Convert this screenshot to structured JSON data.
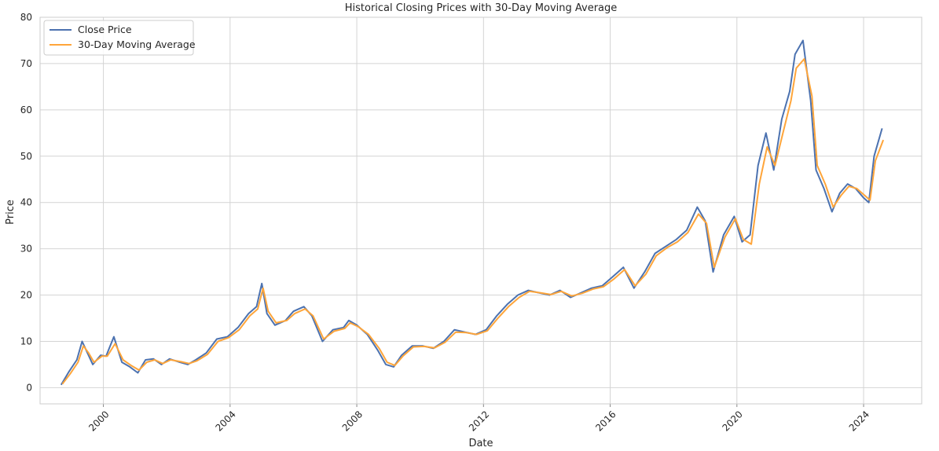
{
  "chart_data": {
    "type": "line",
    "title": "Historical Closing Prices with 30-Day Moving Average",
    "xlabel": "Date",
    "ylabel": "Price",
    "xlim": [
      "1998-01-01",
      "2025-11-01"
    ],
    "ylim": [
      -3.5,
      80
    ],
    "x_ticks": [
      "2000",
      "2004",
      "2008",
      "2012",
      "2016",
      "2020",
      "2024"
    ],
    "y_ticks": [
      0,
      10,
      20,
      30,
      40,
      50,
      60,
      70,
      80
    ],
    "grid": true,
    "legend": "top-left",
    "colors": {
      "close": "#4c72b0",
      "ma": "#ffa53a",
      "grid": "#d4d4d4",
      "axes": "#cccccc"
    },
    "series": [
      {
        "name": "Close Price",
        "key": "close",
        "x": [
          "1998-09-01",
          "1998-12-01",
          "1999-03-01",
          "1999-05-01",
          "1999-07-01",
          "1999-09-01",
          "1999-12-01",
          "2000-02-01",
          "2000-05-01",
          "2000-08-01",
          "2000-11-01",
          "2001-02-01",
          "2001-05-01",
          "2001-08-01",
          "2001-11-01",
          "2002-02-01",
          "2002-06-01",
          "2002-09-01",
          "2002-12-01",
          "2003-04-01",
          "2003-08-01",
          "2003-12-01",
          "2004-04-01",
          "2004-08-01",
          "2004-11-01",
          "2005-01-01",
          "2005-03-01",
          "2005-06-01",
          "2005-10-01",
          "2006-01-01",
          "2006-05-01",
          "2006-08-01",
          "2006-12-01",
          "2007-04-01",
          "2007-08-01",
          "2007-10-01",
          "2008-01-01",
          "2008-05-01",
          "2008-09-01",
          "2008-12-01",
          "2009-03-01",
          "2009-06-01",
          "2009-10-01",
          "2010-02-01",
          "2010-06-01",
          "2010-10-01",
          "2011-02-01",
          "2011-06-01",
          "2011-10-01",
          "2012-02-01",
          "2012-06-01",
          "2012-10-01",
          "2013-02-01",
          "2013-06-01",
          "2013-10-01",
          "2014-02-01",
          "2014-06-01",
          "2014-10-01",
          "2015-02-01",
          "2015-06-01",
          "2015-10-01",
          "2016-02-01",
          "2016-06-01",
          "2016-10-01",
          "2017-02-01",
          "2017-06-01",
          "2017-10-01",
          "2018-02-01",
          "2018-06-01",
          "2018-10-01",
          "2019-01-01",
          "2019-04-01",
          "2019-08-01",
          "2019-12-01",
          "2020-03-01",
          "2020-06-01",
          "2020-09-01",
          "2020-12-01",
          "2021-03-01",
          "2021-06-01",
          "2021-09-01",
          "2021-11-01",
          "2022-02-01",
          "2022-05-01",
          "2022-07-01",
          "2022-10-01",
          "2023-01-01",
          "2023-04-01",
          "2023-07-01",
          "2023-10-01",
          "2024-01-01",
          "2024-03-01",
          "2024-05-01",
          "2024-08-01"
        ],
        "values": [
          0.6,
          3.5,
          6.0,
          10.0,
          7.5,
          5.0,
          7.0,
          6.8,
          11.0,
          5.5,
          4.5,
          3.2,
          6.0,
          6.2,
          5.0,
          6.2,
          5.5,
          5.0,
          6.0,
          7.5,
          10.5,
          11.0,
          13.0,
          16.0,
          17.5,
          22.5,
          16.0,
          13.5,
          14.5,
          16.5,
          17.5,
          15.5,
          10.0,
          12.5,
          13.0,
          14.5,
          13.5,
          11.5,
          8.0,
          5.0,
          4.5,
          7.0,
          9.0,
          9.0,
          8.5,
          10.0,
          12.5,
          12.0,
          11.5,
          12.5,
          15.5,
          18.0,
          20.0,
          21.0,
          20.5,
          20.0,
          21.0,
          19.5,
          20.5,
          21.5,
          22.0,
          24.0,
          26.0,
          21.5,
          25.0,
          29.0,
          30.5,
          32.0,
          34.0,
          39.0,
          36.0,
          25.0,
          33.0,
          37.0,
          31.5,
          33.0,
          48.0,
          55.0,
          47.0,
          58.0,
          64.0,
          72.0,
          75.0,
          62.0,
          47.0,
          43.0,
          38.0,
          42.0,
          44.0,
          43.0,
          41.0,
          40.0,
          50.0,
          56.0
        ]
      },
      {
        "name": "30-Day Moving Average",
        "key": "ma",
        "x": [
          "1998-09-15",
          "1998-12-15",
          "1999-03-15",
          "1999-05-15",
          "1999-07-15",
          "1999-09-15",
          "1999-12-15",
          "2000-02-15",
          "2000-05-15",
          "2000-08-15",
          "2000-11-15",
          "2001-02-15",
          "2001-05-15",
          "2001-08-15",
          "2001-11-15",
          "2002-02-15",
          "2002-06-15",
          "2002-09-15",
          "2002-12-15",
          "2003-04-15",
          "2003-08-15",
          "2003-12-15",
          "2004-04-15",
          "2004-08-15",
          "2004-11-15",
          "2005-01-15",
          "2005-03-15",
          "2005-06-15",
          "2005-10-15",
          "2006-01-15",
          "2006-05-15",
          "2006-08-15",
          "2006-12-15",
          "2007-04-15",
          "2007-08-15",
          "2007-10-15",
          "2008-01-15",
          "2008-05-15",
          "2008-09-15",
          "2008-12-15",
          "2009-03-15",
          "2009-06-15",
          "2009-10-15",
          "2010-02-15",
          "2010-06-15",
          "2010-10-15",
          "2011-02-15",
          "2011-06-15",
          "2011-10-15",
          "2012-02-15",
          "2012-06-15",
          "2012-10-15",
          "2013-02-15",
          "2013-06-15",
          "2013-10-15",
          "2014-02-15",
          "2014-06-15",
          "2014-10-15",
          "2015-02-15",
          "2015-06-15",
          "2015-10-15",
          "2016-02-15",
          "2016-06-15",
          "2016-10-15",
          "2017-02-15",
          "2017-06-15",
          "2017-10-15",
          "2018-02-15",
          "2018-06-15",
          "2018-10-15",
          "2019-01-15",
          "2019-04-15",
          "2019-08-15",
          "2019-12-15",
          "2020-03-15",
          "2020-06-15",
          "2020-09-15",
          "2020-12-15",
          "2021-03-15",
          "2021-06-15",
          "2021-09-15",
          "2021-11-15",
          "2022-02-15",
          "2022-05-15",
          "2022-07-15",
          "2022-10-15",
          "2023-01-15",
          "2023-04-15",
          "2023-07-15",
          "2023-10-15",
          "2024-01-15",
          "2024-03-15",
          "2024-05-15",
          "2024-08-15"
        ],
        "values": [
          0.8,
          3.0,
          5.5,
          9.0,
          7.5,
          5.5,
          6.8,
          6.8,
          9.5,
          6.0,
          4.8,
          3.8,
          5.5,
          6.0,
          5.2,
          6.0,
          5.6,
          5.2,
          5.8,
          7.2,
          10.0,
          10.8,
          12.5,
          15.5,
          17.0,
          21.5,
          16.5,
          14.0,
          14.5,
          16.0,
          17.0,
          15.5,
          10.5,
          12.2,
          12.8,
          14.0,
          13.2,
          11.5,
          8.5,
          5.5,
          4.8,
          6.8,
          8.8,
          8.9,
          8.6,
          9.8,
          12.0,
          11.9,
          11.5,
          12.3,
          15.0,
          17.5,
          19.5,
          20.8,
          20.5,
          20.1,
          20.8,
          19.8,
          20.4,
          21.3,
          21.8,
          23.5,
          25.5,
          22.0,
          24.5,
          28.5,
          30.2,
          31.5,
          33.5,
          37.5,
          35.5,
          26.0,
          32.5,
          36.5,
          32.0,
          31.0,
          44.0,
          52.0,
          48.0,
          55.0,
          62.0,
          69.0,
          71.0,
          63.0,
          48.0,
          44.0,
          39.0,
          41.5,
          43.5,
          43.0,
          41.5,
          40.5,
          49.0,
          53.5
        ]
      }
    ]
  }
}
